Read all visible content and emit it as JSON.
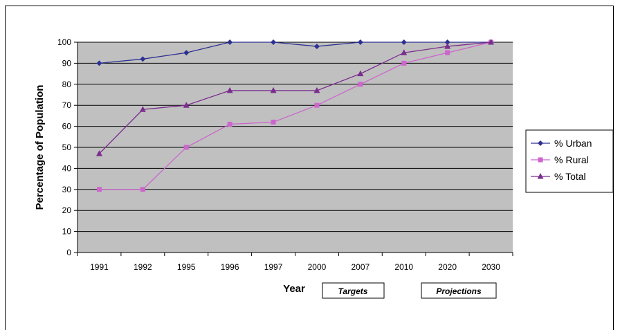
{
  "chart_data": {
    "type": "line",
    "categories": [
      "1991",
      "1992",
      "1995",
      "1996",
      "1997",
      "2000",
      "2007",
      "2010",
      "2020",
      "2030"
    ],
    "series": [
      {
        "name": "% Urban",
        "color": "#2E3192",
        "marker": "diamond",
        "values": [
          90,
          92,
          95,
          100,
          100,
          98,
          100,
          100,
          100,
          100
        ]
      },
      {
        "name": "% Rural",
        "color": "#CC66CC",
        "marker": "square",
        "values": [
          30,
          30,
          50,
          61,
          62,
          70,
          80,
          90,
          95,
          100
        ]
      },
      {
        "name": "% Total",
        "color": "#7B2D8E",
        "marker": "triangle",
        "values": [
          47,
          68,
          70,
          77,
          77,
          77,
          85,
          95,
          98,
          100
        ]
      }
    ],
    "ylabel": "Percentage of Population",
    "xlabel": "Year",
    "ylim": [
      0,
      100
    ],
    "yticks": [
      0,
      10,
      20,
      30,
      40,
      50,
      60,
      70,
      80,
      90,
      100
    ],
    "grid": true,
    "plot_background": "#C0C0C0",
    "legend_position": "right",
    "annotations": [
      "Targets",
      "Projections"
    ]
  }
}
